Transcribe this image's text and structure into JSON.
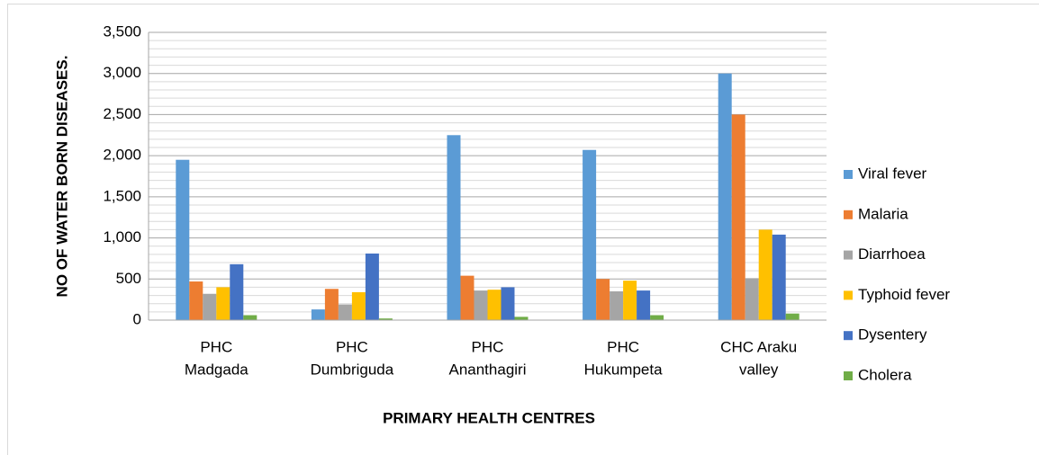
{
  "chart_data": {
    "type": "bar",
    "y_axis_title": "NO OF WATER BORN DISEASES.",
    "x_axis_title": "PRIMARY  HEALTH CENTRES",
    "categories": [
      [
        "PHC",
        "Madgada"
      ],
      [
        "PHC",
        "Dumbriguda"
      ],
      [
        "PHC",
        "Ananthagiri"
      ],
      [
        "PHC",
        "Hukumpeta"
      ],
      [
        "CHC Araku",
        "valley"
      ]
    ],
    "series": [
      {
        "name": "Viral fever",
        "color": "#5b9bd5",
        "values": [
          1950,
          130,
          2250,
          2070,
          3000
        ]
      },
      {
        "name": "Malaria",
        "color": "#ed7d31",
        "values": [
          470,
          380,
          540,
          500,
          2500
        ]
      },
      {
        "name": "Diarrhoea",
        "color": "#a5a5a5",
        "values": [
          320,
          190,
          360,
          350,
          510
        ]
      },
      {
        "name": "Typhoid fever",
        "color": "#ffc000",
        "values": [
          400,
          340,
          370,
          480,
          1100
        ]
      },
      {
        "name": "Dysentery",
        "color": "#4472c4",
        "values": [
          680,
          810,
          400,
          360,
          1040
        ]
      },
      {
        "name": "Cholera",
        "color": "#70ad47",
        "values": [
          60,
          20,
          40,
          60,
          80
        ]
      }
    ],
    "ylim": [
      0,
      3500
    ],
    "yticks": [
      0,
      500,
      {
        "value": 1000,
        "label": "1,000"
      },
      {
        "value": 1500,
        "label": "1,500"
      },
      {
        "value": 2000,
        "label": "2,000"
      },
      {
        "value": 2500,
        "label": "2,500"
      },
      {
        "value": 3000,
        "label": "3,000"
      },
      {
        "value": 3500,
        "label": "3,500"
      }
    ],
    "minor_yticks": [
      100,
      200,
      300,
      400,
      600,
      700,
      800,
      900,
      1100,
      1200,
      1300,
      1400,
      1600,
      1700,
      1800,
      1900,
      2100,
      2200,
      2300,
      2400,
      2600,
      2700,
      2800,
      2900,
      3100,
      3200,
      3300,
      3400
    ],
    "grid": true,
    "legend": "right"
  }
}
